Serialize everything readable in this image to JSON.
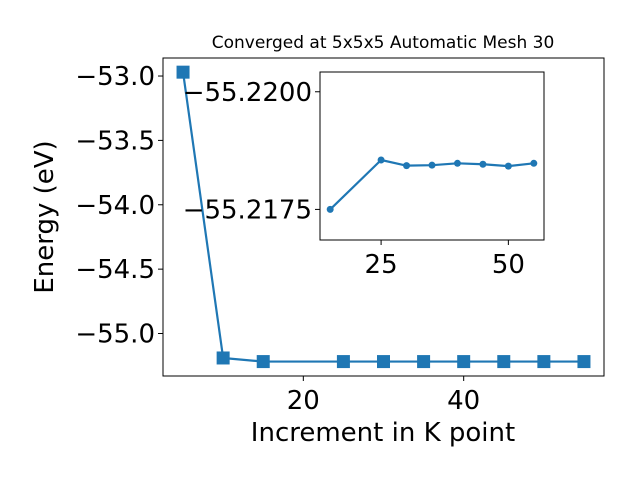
{
  "chart_data": [
    {
      "type": "line",
      "title": "Converged at 5x5x5 Automatic Mesh 30",
      "xlabel": "Increment in K point",
      "ylabel": "Energy (eV)",
      "x": [
        5,
        10,
        15,
        25,
        30,
        35,
        40,
        45,
        50,
        55
      ],
      "y": [
        -52.97,
        -55.19,
        -55.218,
        -55.218,
        -55.218,
        -55.218,
        -55.218,
        -55.218,
        -55.218,
        -55.218
      ],
      "xlim": [
        2.5,
        57.5
      ],
      "ylim": [
        -55.33,
        -52.86
      ],
      "xticks": [
        20,
        40
      ],
      "xtick_labels": [
        "20",
        "40"
      ],
      "yticks": [
        -53.0,
        -53.5,
        -54.0,
        -54.5,
        -55.0
      ],
      "ytick_labels": [
        "−53.0",
        "−53.5",
        "−54.0",
        "−54.5",
        "−55.0"
      ],
      "marker": "square",
      "color": "#1f77b4",
      "grid": false
    },
    {
      "type": "line",
      "title": "",
      "xlabel": "",
      "ylabel": "",
      "x": [
        15,
        25,
        30,
        35,
        40,
        45,
        50,
        55
      ],
      "y": [
        -55.2175,
        -55.21855,
        -55.21843,
        -55.21844,
        -55.21848,
        -55.21846,
        -55.21842,
        -55.21848
      ],
      "xlim": [
        13,
        57
      ],
      "ylim": [
        -55.21685,
        -55.22042
      ],
      "xticks": [
        25,
        50
      ],
      "xtick_labels": [
        "25",
        "50"
      ],
      "yticks": [
        -55.22,
        -55.2175
      ],
      "ytick_labels": [
        "−55.2200",
        "−55.2175"
      ],
      "marker": "circle",
      "color": "#1f77b4",
      "grid": false
    }
  ]
}
